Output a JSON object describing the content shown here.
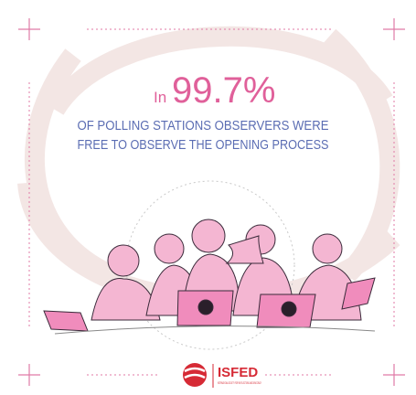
{
  "headline": {
    "prefix": "In",
    "figure": "99.7%",
    "line1": "OF POLLING STATIONS OBSERVERS WERE",
    "line2": "FREE TO OBSERVE THE OPENING PROCESS"
  },
  "logo": {
    "name": "ISFED",
    "tagline": "INTERNATIONAL SOCIETY FOR FAIR ELECTIONS AND DEMOCRACY"
  }
}
